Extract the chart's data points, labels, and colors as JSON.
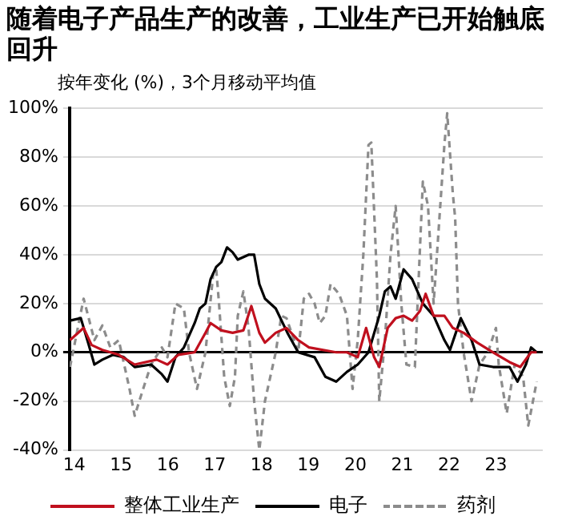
{
  "chart_data": {
    "type": "line",
    "title": "随着电子产品生产的改善，工业生产已开始触底回升",
    "subtitle": "按年变化 (%)，3个月移动平均值",
    "xlim": [
      13.9,
      24.0
    ],
    "xticks": [
      14,
      15,
      16,
      17,
      18,
      19,
      20,
      21,
      22,
      23
    ],
    "ylim": [
      -40,
      100
    ],
    "yticks": [
      {
        "value": -40,
        "label": "-40%"
      },
      {
        "value": -20,
        "label": "-20%"
      },
      {
        "value": 0,
        "label": "0%"
      },
      {
        "value": 20,
        "label": "20%"
      },
      {
        "value": 40,
        "label": "40%"
      },
      {
        "value": 60,
        "label": "60%"
      },
      {
        "value": 80,
        "label": "80%"
      },
      {
        "value": 100,
        "label": "100%"
      }
    ],
    "grid": "y",
    "legend": "bottom",
    "marker": "none",
    "series": [
      {
        "name": "整体工业生产",
        "color": "#c0101e",
        "line_style": "solid",
        "x": [
          13.91,
          14.2,
          14.37,
          14.6,
          14.95,
          15.29,
          15.76,
          15.99,
          16.22,
          16.57,
          16.8,
          16.91,
          17.14,
          17.38,
          17.61,
          17.78,
          17.95,
          18.07,
          18.3,
          18.53,
          18.78,
          19.01,
          19.59,
          19.82,
          20.05,
          20.23,
          20.4,
          20.51,
          20.69,
          20.86,
          21.03,
          21.21,
          21.38,
          21.5,
          21.67,
          21.9,
          22.08,
          22.31,
          22.6,
          22.94,
          23.29,
          23.52,
          23.75,
          23.87
        ],
        "values": [
          5,
          10,
          3,
          1,
          -1,
          -5,
          -3,
          -5,
          -1,
          0,
          8,
          12,
          9,
          8,
          9,
          19,
          8,
          4,
          8,
          10,
          5,
          2,
          0,
          0,
          -2,
          10,
          -2,
          -6,
          10,
          14,
          15,
          13,
          17,
          24,
          15,
          15,
          10,
          8,
          4,
          0,
          -4,
          -6,
          0,
          0
        ]
      },
      {
        "name": "电子",
        "color": "#000000",
        "line_style": "solid",
        "x": [
          13.91,
          14.14,
          14.31,
          14.43,
          14.6,
          14.83,
          15.06,
          15.29,
          15.64,
          15.87,
          15.99,
          16.16,
          16.34,
          16.57,
          16.68,
          16.8,
          16.91,
          17.03,
          17.14,
          17.26,
          17.38,
          17.49,
          17.72,
          17.84,
          17.95,
          18.07,
          18.3,
          18.55,
          18.78,
          19.13,
          19.36,
          19.59,
          19.82,
          20.05,
          20.28,
          20.51,
          20.63,
          20.75,
          20.86,
          21.03,
          21.21,
          21.44,
          21.67,
          21.9,
          22.02,
          22.25,
          22.48,
          22.65,
          22.94,
          23.29,
          23.46,
          23.64,
          23.75,
          23.87
        ],
        "values": [
          13,
          14,
          3,
          -5,
          -3,
          -1,
          -2,
          -6,
          -5,
          -9,
          -12,
          -2,
          2,
          12,
          18,
          20,
          30,
          35,
          37,
          43,
          41,
          38,
          40,
          40,
          28,
          22,
          18,
          8,
          0,
          -2,
          -10,
          -12,
          -8,
          -5,
          0,
          15,
          25,
          27,
          22,
          34,
          30,
          20,
          15,
          5,
          1,
          14,
          5,
          -5,
          -6,
          -6,
          -12,
          -5,
          2,
          0
        ]
      },
      {
        "name": "药剂",
        "color": "#8c8c8c",
        "line_style": "dashed",
        "x": [
          13.91,
          14.2,
          14.43,
          14.6,
          14.77,
          14.95,
          15.18,
          15.29,
          15.47,
          15.64,
          15.87,
          15.99,
          16.16,
          16.34,
          16.45,
          16.62,
          16.8,
          16.97,
          17.03,
          17.09,
          17.2,
          17.32,
          17.43,
          17.49,
          17.61,
          17.72,
          17.84,
          17.95,
          18.07,
          18.3,
          18.42,
          18.53,
          18.78,
          18.9,
          19.01,
          19.13,
          19.24,
          19.36,
          19.47,
          19.65,
          19.82,
          19.94,
          20.05,
          20.17,
          20.28,
          20.34,
          20.46,
          20.51,
          20.63,
          20.75,
          20.86,
          20.98,
          21.09,
          21.27,
          21.44,
          21.55,
          21.67,
          21.9,
          21.96,
          22.08,
          22.13,
          22.19,
          22.31,
          22.48,
          22.65,
          22.83,
          23.0,
          23.06,
          23.23,
          23.4,
          23.58,
          23.69,
          23.87
        ],
        "values": [
          -6,
          22,
          5,
          11,
          2,
          5,
          -15,
          -26,
          -15,
          -5,
          2,
          -2,
          20,
          18,
          0,
          -15,
          0,
          33,
          34,
          20,
          -10,
          -22,
          -10,
          15,
          25,
          10,
          -20,
          -40,
          -20,
          0,
          15,
          14,
          0,
          22,
          24,
          20,
          12,
          15,
          28,
          24,
          15,
          -15,
          5,
          40,
          85,
          86,
          30,
          -20,
          5,
          40,
          60,
          20,
          -5,
          -6,
          70,
          60,
          20,
          85,
          98,
          65,
          55,
          20,
          0,
          -20,
          -5,
          0,
          10,
          -5,
          -25,
          -5,
          -10,
          -30,
          -12
        ]
      }
    ]
  }
}
